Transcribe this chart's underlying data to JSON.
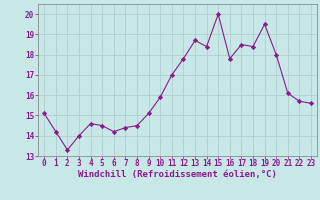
{
  "x": [
    0,
    1,
    2,
    3,
    4,
    5,
    6,
    7,
    8,
    9,
    10,
    11,
    12,
    13,
    14,
    15,
    16,
    17,
    18,
    19,
    20,
    21,
    22,
    23
  ],
  "y": [
    15.1,
    14.2,
    13.3,
    14.0,
    14.6,
    14.5,
    14.2,
    14.4,
    14.5,
    15.1,
    15.9,
    17.0,
    17.8,
    18.7,
    18.4,
    20.0,
    17.8,
    18.5,
    18.4,
    19.5,
    18.0,
    16.1,
    15.7,
    15.6
  ],
  "line_color": "#8b1a8b",
  "marker": "D",
  "marker_size": 2.2,
  "bg_color": "#c8e8e8",
  "grid_color": "#b0d0d0",
  "xlabel": "Windchill (Refroidissement éolien,°C)",
  "ylim": [
    13,
    20.5
  ],
  "xlim": [
    -0.5,
    23.5
  ],
  "yticks": [
    13,
    14,
    15,
    16,
    17,
    18,
    19,
    20
  ],
  "xticks": [
    0,
    1,
    2,
    3,
    4,
    5,
    6,
    7,
    8,
    9,
    10,
    11,
    12,
    13,
    14,
    15,
    16,
    17,
    18,
    19,
    20,
    21,
    22,
    23
  ],
  "tick_color": "#8b1a8b",
  "label_color": "#8b1a8b",
  "label_fontsize": 6.5,
  "tick_fontsize": 5.5,
  "spine_color": "#8b8b8b"
}
